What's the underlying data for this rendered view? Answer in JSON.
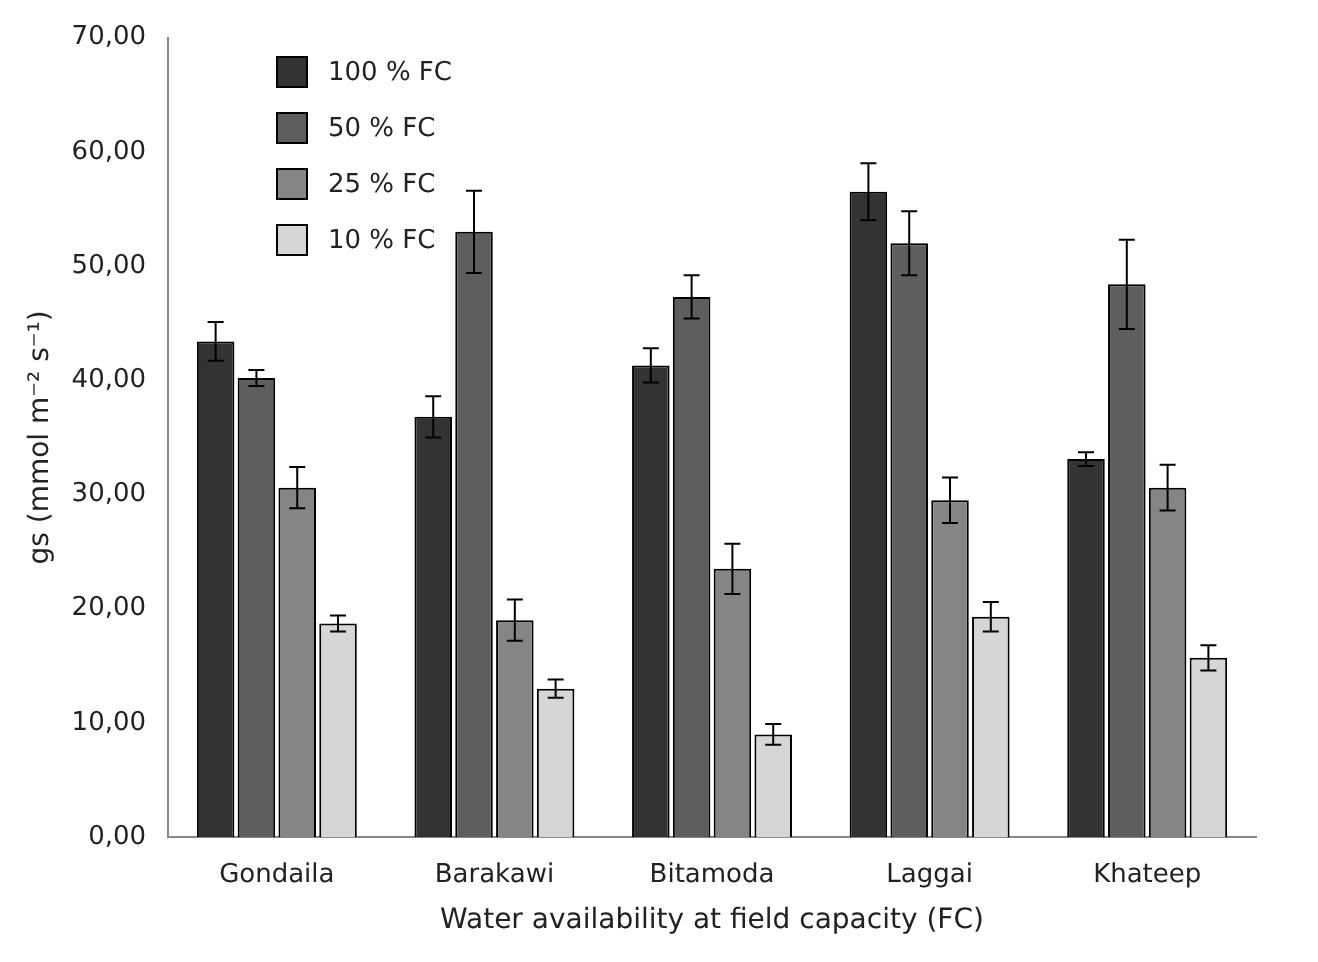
{
  "chart_data": {
    "type": "bar",
    "xlabel": "Water availability at field capacity (FC)",
    "ylabel": "gs (mmol m⁻² s⁻¹)",
    "categories": [
      "Gondaila",
      "Barakawi",
      "Bitamoda",
      "Laggai",
      "Khateep"
    ],
    "series": [
      {
        "name": "100 % FC",
        "color": "#333333",
        "values": [
          43.4,
          36.8,
          41.3,
          56.5,
          33.1
        ],
        "errors": [
          1.7,
          1.8,
          1.5,
          2.5,
          0.6
        ]
      },
      {
        "name": "50 % FC",
        "color": "#5e5e5e",
        "values": [
          40.2,
          53.0,
          47.3,
          52.0,
          48.4
        ],
        "errors": [
          0.7,
          3.6,
          1.9,
          2.8,
          3.9
        ]
      },
      {
        "name": "25 % FC",
        "color": "#858585",
        "values": [
          30.6,
          19.0,
          23.5,
          29.5,
          30.6
        ],
        "errors": [
          1.8,
          1.8,
          2.2,
          2.0,
          2.0
        ]
      },
      {
        "name": "10 % FC",
        "color": "#d6d6d6",
        "values": [
          18.7,
          13.0,
          9.0,
          19.3,
          15.7
        ],
        "errors": [
          0.7,
          0.8,
          0.9,
          1.3,
          1.1
        ]
      }
    ],
    "ylim": [
      0,
      70
    ],
    "yticks": [
      {
        "value": 0,
        "label": "0,00"
      },
      {
        "value": 10,
        "label": "10,00"
      },
      {
        "value": 20,
        "label": "20,00"
      },
      {
        "value": 30,
        "label": "30,00"
      },
      {
        "value": 40,
        "label": "40,00"
      },
      {
        "value": 50,
        "label": "50,00"
      },
      {
        "value": 60,
        "label": "60,00"
      },
      {
        "value": 70,
        "label": "70,00"
      }
    ],
    "grid": false,
    "legend": "top left"
  }
}
